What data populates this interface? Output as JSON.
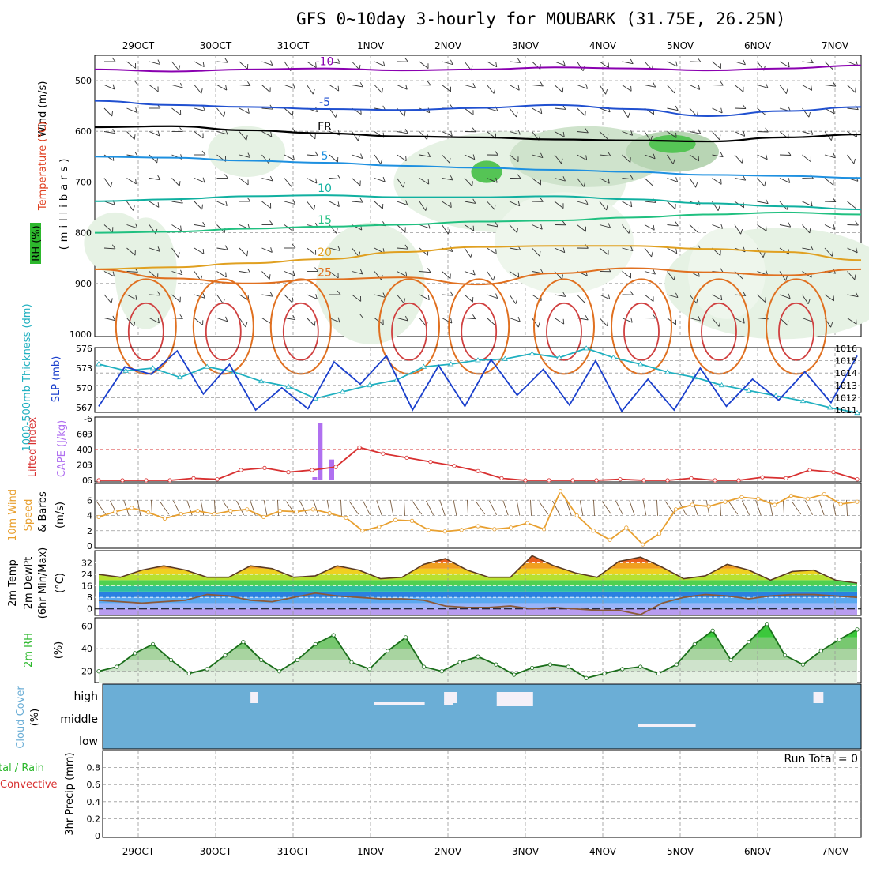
{
  "title": "GFS 0~10day 3-hourly for MOUBARK (31.75E, 26.25N)",
  "dates": [
    "29OCT",
    "30OCT",
    "31OCT",
    "1NOV",
    "2NOV",
    "3NOV",
    "4NOV",
    "5NOV",
    "6NOV",
    "7NOV"
  ],
  "colors": {
    "slp": "#1a3fcc",
    "thickness": "#20b0c0",
    "cape": "#b070f0",
    "lifted": "#d83030",
    "wind10": "#e8a030",
    "rh2m": "#3ab03a",
    "cloud": "#6baed6",
    "temp_neg10": "#8a00b0",
    "temp_neg5": "#2050d0",
    "temp_fr": "#000000",
    "temp_5": "#1e90e0",
    "temp_10": "#10b0a0",
    "temp_15": "#20c080",
    "temp_20": "#e0a020",
    "temp_25": "#e07020",
    "temp_30": "#d04040"
  },
  "panels": {
    "upper": {
      "ylabel_wind": "Wind (m/s)",
      "ylabel_temp": "Temperature (°C)",
      "ylabel_rh": "RH (%)",
      "ylabel_pres": "(millibars)",
      "pressure_ticks": [
        "500",
        "600",
        "700",
        "800",
        "900",
        "1000"
      ]
    },
    "slp": {
      "ylabel_thk": "1000-500mb Thickness (dm)",
      "ylabel_slp": "SLP (mb)",
      "left_ticks": [
        "576",
        "573",
        "570",
        "567"
      ],
      "right_ticks": [
        "1016",
        "1015",
        "1014",
        "1013",
        "1012",
        "1011"
      ]
    },
    "cape": {
      "ylabel_li": "Lifted Index",
      "ylabel_cape": "CAPE (J/kg)",
      "left_ticks": [
        "-6",
        "-3",
        "0",
        "3",
        "6"
      ],
      "right_ticks": [
        "60",
        "40",
        "20",
        "0"
      ]
    },
    "wind": {
      "ylabel1": "10m Wind",
      "ylabel2": "Speed",
      "ylabel3": "& Barbs",
      "ylabel4": "(m/s)",
      "ticks": [
        "6",
        "4",
        "2",
        "0"
      ]
    },
    "temp": {
      "ylabel1": "2m Temp",
      "ylabel2": "2m DewPt",
      "ylabel3": "(6hr Min/Max)",
      "ylabel4": "(°C)",
      "ticks": [
        "32",
        "24",
        "16",
        "8",
        "0"
      ]
    },
    "rh": {
      "ylabel1": "2m RH",
      "ylabel2": "(%)",
      "ticks": [
        "60",
        "40",
        "20"
      ]
    },
    "cloud": {
      "ylabel1": "Cloud Cover",
      "ylabel2": "(%)",
      "levels": [
        "high",
        "middle",
        "low"
      ]
    },
    "precip": {
      "ylabel1": "tal / Rain",
      "ylabel2": "Convective",
      "ylabel3": "3hr Precip (mm)",
      "ticks": [
        "0.8",
        "0.6",
        "0.4",
        "0.2",
        "0"
      ],
      "run_total": "Run Total = 0"
    }
  },
  "chart_data": [
    {
      "type": "line",
      "name": "upper-air temperature contours",
      "contour_labels": [
        "-10",
        "-5",
        "FR",
        "5",
        "10",
        "15",
        "20",
        "25"
      ],
      "series": [
        {
          "name": "-10",
          "pressure_mb": [
            478,
            482,
            478,
            476,
            480,
            478,
            474,
            476,
            480,
            476,
            470
          ]
        },
        {
          "name": "-5",
          "pressure_mb": [
            540,
            548,
            552,
            556,
            558,
            554,
            548,
            556,
            570,
            560,
            552
          ]
        },
        {
          "name": "FR",
          "pressure_mb": [
            592,
            590,
            598,
            604,
            610,
            612,
            616,
            618,
            620,
            612,
            606
          ]
        },
        {
          "name": "5",
          "pressure_mb": [
            650,
            652,
            658,
            662,
            668,
            672,
            676,
            680,
            686,
            688,
            692
          ]
        },
        {
          "name": "10",
          "pressure_mb": [
            738,
            734,
            728,
            726,
            730,
            730,
            728,
            734,
            742,
            748,
            754
          ]
        },
        {
          "name": "15",
          "pressure_mb": [
            800,
            798,
            792,
            788,
            784,
            778,
            776,
            770,
            764,
            760,
            764
          ]
        },
        {
          "name": "20",
          "pressure_mb": [
            872,
            868,
            860,
            852,
            838,
            828,
            826,
            826,
            832,
            838,
            854
          ]
        },
        {
          "name": "25",
          "pressure_mb": [
            872,
            890,
            900,
            892,
            888,
            902,
            880,
            870,
            878,
            884,
            872
          ]
        }
      ]
    },
    {
      "type": "line",
      "name": "SLP and thickness",
      "series": [
        {
          "name": "SLP",
          "values": [
            1011.3,
            1014.5,
            1013.9,
            1015.8,
            1012.3,
            1014.7,
            1011.0,
            1012.8,
            1011.1,
            1014.9,
            1013.1,
            1015.4,
            1011.0,
            1014.6,
            1011.3,
            1015.1,
            1012.2,
            1014.3,
            1011.4,
            1015.0,
            1010.9,
            1013.5,
            1011.0,
            1014.4,
            1011.3,
            1013.5,
            1011.8,
            1014.1,
            1011.6,
            1015.4
          ]
        },
        {
          "name": "Thickness",
          "values": [
            573.6,
            572.6,
            573.0,
            571.6,
            573.2,
            572.4,
            571.0,
            570.2,
            568.4,
            569.4,
            570.4,
            571.2,
            573.2,
            573.6,
            574.2,
            574.4,
            575.2,
            574.6,
            576.0,
            574.6,
            573.6,
            572.4,
            571.6,
            570.4,
            569.6,
            568.8,
            568.0,
            567.0,
            566.2
          ]
        }
      ]
    },
    {
      "type": "bar",
      "name": "CAPE and Lifted Index",
      "cape_bars": [
        {
          "date_index": 2.28,
          "value": 0
        },
        {
          "date_index": 2.35,
          "value": 74
        },
        {
          "date_index": 2.5,
          "value": 27
        }
      ],
      "lifted_index": [
        6,
        6,
        6,
        6,
        5.6,
        5.8,
        4,
        3.6,
        4.4,
        4,
        3.4,
        -0.4,
        0.8,
        1.6,
        2.4,
        3.2,
        4.2,
        5.6,
        6,
        6,
        6,
        6,
        5.8,
        6,
        6,
        5.6,
        6,
        6,
        5.4,
        5.6,
        4,
        4.4,
        5.8
      ]
    },
    {
      "type": "line",
      "name": "10m wind speed",
      "values": [
        3.8,
        4.5,
        5,
        4.4,
        3.6,
        4.2,
        4.6,
        4.2,
        4.6,
        4.8,
        3.8,
        4.6,
        4.5,
        4.8,
        4.3,
        3.7,
        2,
        2.5,
        3.4,
        3.3,
        2.1,
        1.9,
        2.1,
        2.6,
        2.2,
        2.4,
        3,
        2.2,
        7.2,
        4,
        2,
        0.8,
        2.4,
        0.2,
        1.6,
        4.8,
        5.4,
        5.2,
        5.8,
        6.4,
        6.2,
        5.4,
        6.6,
        6.2,
        6.8,
        5.5,
        5.8
      ]
    },
    {
      "type": "area",
      "name": "2m temperature and dewpoint",
      "temperature": [
        24,
        22,
        27,
        30,
        27,
        22,
        22,
        30,
        28,
        22,
        23,
        30,
        27,
        21,
        22,
        31,
        35,
        27,
        22,
        22,
        37,
        30,
        25,
        22,
        33,
        36,
        29,
        21,
        23,
        31,
        27,
        20,
        26,
        27,
        20,
        18
      ],
      "dewpoint": [
        6,
        5,
        4,
        5,
        6,
        10,
        9,
        6,
        5,
        8,
        11,
        9,
        8,
        7,
        7,
        6,
        2,
        1,
        1,
        2,
        0,
        1,
        0,
        -1,
        -1,
        -4,
        4,
        8,
        10,
        9,
        7,
        9,
        10,
        10,
        9,
        8
      ]
    },
    {
      "type": "area",
      "name": "2m RH",
      "values": [
        20,
        24,
        36,
        44,
        30,
        18,
        22,
        34,
        46,
        30,
        20,
        30,
        44,
        52,
        28,
        22,
        38,
        50,
        24,
        20,
        28,
        33,
        26,
        17,
        23,
        26,
        24,
        14,
        18,
        22,
        24,
        18,
        26,
        44,
        56,
        30,
        46,
        62,
        34,
        26,
        38,
        48,
        57
      ]
    },
    {
      "type": "heatmap",
      "name": "cloud cover",
      "high": [
        {
          "from": 1.45,
          "to": 1.55
        },
        {
          "from": 3.95,
          "to": 4.12
        },
        {
          "from": 4.63,
          "to": 5.1
        },
        {
          "from": 8.72,
          "to": 8.85
        }
      ],
      "middle_low": [
        {
          "from": 6.45,
          "to": 7.2
        }
      ]
    }
  ]
}
